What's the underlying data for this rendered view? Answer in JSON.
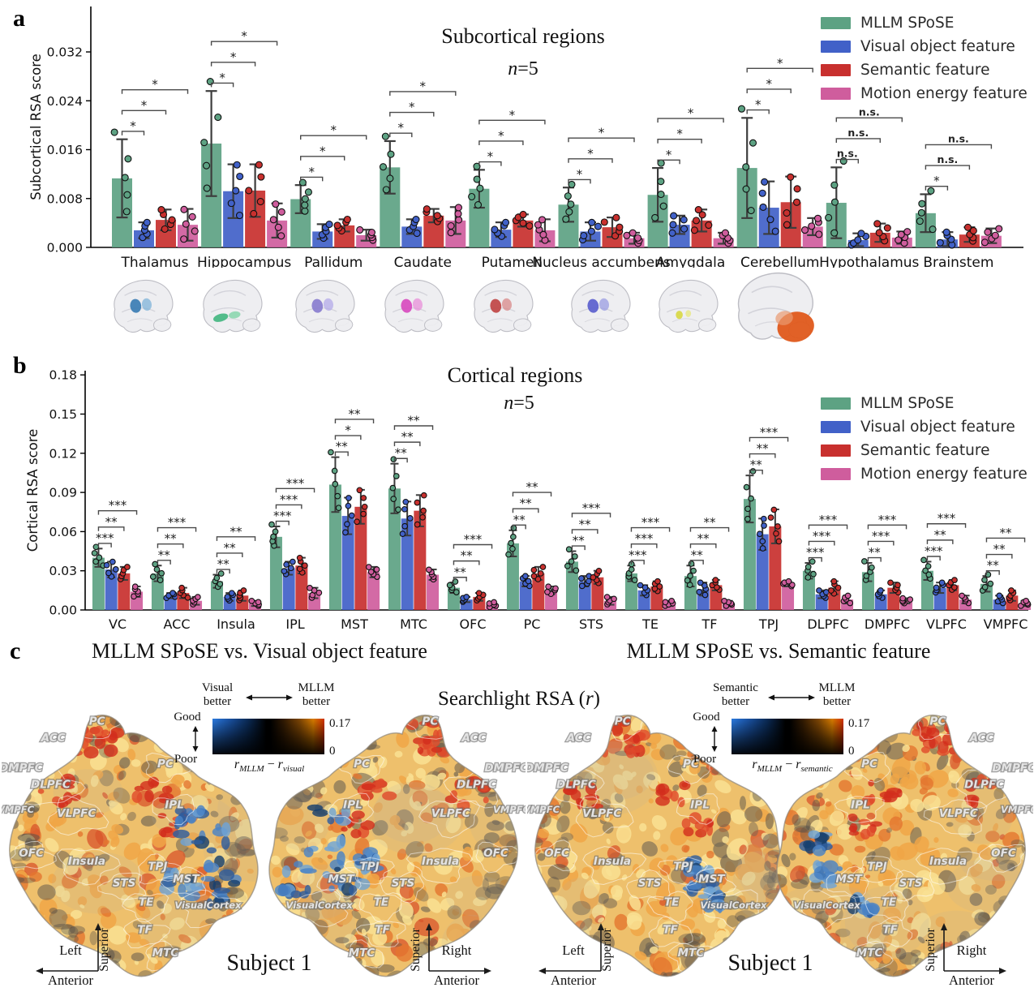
{
  "legend": {
    "items": [
      {
        "label": "MLLM SPoSE",
        "color": "#5da283"
      },
      {
        "label": "Visual object feature",
        "color": "#4161c8"
      },
      {
        "label": "Semantic feature",
        "color": "#c8302e"
      },
      {
        "label": "Motion energy feature",
        "color": "#cf5d9d"
      }
    ]
  },
  "chart_data": [
    {
      "panel": "a",
      "type": "bar",
      "title": "Subcortical regions",
      "subtitle_var": "n",
      "subtitle_rest": "=5",
      "ylabel": "Subcortical RSA score",
      "ylim": [
        0,
        0.0345
      ],
      "yticks": [
        {
          "v": 0.0,
          "label": "0.000"
        },
        {
          "v": 0.008,
          "label": "0.008"
        },
        {
          "v": 0.016,
          "label": "0.016"
        },
        {
          "v": 0.024,
          "label": "0.024"
        },
        {
          "v": 0.032,
          "label": "0.032"
        }
      ],
      "categories": [
        "Thalamus",
        "Hippocampus",
        "Pallidum",
        "Caudate",
        "Putamen",
        "Nucleus accumbens",
        "Amygdala",
        "Cerebellum",
        "Hypothalamus",
        "Brainstem"
      ],
      "series": [
        {
          "name": "MLLM SPoSE",
          "color": "#5da283",
          "values": [
            0.0113,
            0.017,
            0.0079,
            0.0131,
            0.0096,
            0.007,
            0.0086,
            0.013,
            0.0073,
            0.0056
          ],
          "errors": [
            0.0064,
            0.0086,
            0.0023,
            0.0043,
            0.0031,
            0.0028,
            0.0044,
            0.0082,
            0.0058,
            0.0031
          ]
        },
        {
          "name": "Visual object feature",
          "color": "#4161c8",
          "values": [
            0.0028,
            0.0092,
            0.0026,
            0.0034,
            0.0029,
            0.0026,
            0.0037,
            0.0065,
            0.0012,
            0.0013
          ],
          "errors": [
            0.0013,
            0.0044,
            0.0012,
            0.0012,
            0.0012,
            0.0015,
            0.0015,
            0.0043,
            0.0011,
            0.0012
          ]
        },
        {
          "name": "Semantic feature",
          "color": "#c8302e",
          "values": [
            0.0045,
            0.0093,
            0.0036,
            0.0052,
            0.0044,
            0.0033,
            0.0044,
            0.0074,
            0.0024,
            0.0021
          ],
          "errors": [
            0.0017,
            0.0043,
            0.001,
            0.0011,
            0.001,
            0.0016,
            0.0018,
            0.0042,
            0.0015,
            0.0012
          ]
        },
        {
          "name": "Motion energy feature",
          "color": "#cf5d9d",
          "values": [
            0.0037,
            0.0044,
            0.002,
            0.0044,
            0.0028,
            0.0015,
            0.0015,
            0.0034,
            0.0016,
            0.0019
          ],
          "errors": [
            0.0026,
            0.0028,
            0.0009,
            0.0022,
            0.0018,
            0.0009,
            0.0009,
            0.0014,
            0.001,
            0.0012
          ]
        }
      ],
      "significance": [
        [
          "*",
          "*",
          "*"
        ],
        [
          "*",
          "*",
          "*"
        ],
        [
          "*",
          "*",
          "*"
        ],
        [
          "*",
          "*",
          "*"
        ],
        [
          "*",
          "*",
          "*"
        ],
        [
          "*",
          "*",
          "*"
        ],
        [
          "*",
          "*",
          "*"
        ],
        [
          "*",
          "*",
          "*"
        ],
        [
          "n.s.",
          "n.s.",
          "n.s."
        ],
        [
          "*",
          "n.s.",
          "n.s."
        ]
      ],
      "brain_insets": [
        {
          "region": "Thalamus",
          "color": "#3f7fb5",
          "color2": "#7fb3d8",
          "shape": "central"
        },
        {
          "region": "Hippocampus",
          "color": "#49b884",
          "color2": "#7fd3a8",
          "shape": "temporal"
        },
        {
          "region": "Pallidum",
          "color": "#8b80d0",
          "color2": "#b3a9e8",
          "shape": "central"
        },
        {
          "region": "Caudate",
          "color": "#d84fc0",
          "color2": "#e88fd8",
          "shape": "central"
        },
        {
          "region": "Putamen",
          "color": "#c14a4a",
          "color2": "#d88888",
          "shape": "central"
        },
        {
          "region": "Nucleus accumbens",
          "color": "#5f63cf",
          "color2": "#9a9ce2",
          "shape": "central"
        },
        {
          "region": "Amygdala",
          "color": "#d8d84a",
          "color2": "#e8e88a",
          "shape": "amygdala"
        },
        {
          "region": "Cerebellum",
          "color": "#e05c20",
          "color2": "#ea9a70",
          "shape": "cerebellum"
        }
      ]
    },
    {
      "panel": "b",
      "type": "bar",
      "title": "Cortical regions",
      "subtitle_var": "n",
      "subtitle_rest": "=5",
      "ylabel": "Cortical RSA score",
      "ylim": [
        0,
        0.185
      ],
      "yticks": [
        {
          "v": 0.0,
          "label": "0.00"
        },
        {
          "v": 0.03,
          "label": "0.03"
        },
        {
          "v": 0.06,
          "label": "0.06"
        },
        {
          "v": 0.09,
          "label": "0.09"
        },
        {
          "v": 0.12,
          "label": "0.12"
        },
        {
          "v": 0.15,
          "label": "0.15"
        },
        {
          "v": 0.18,
          "label": "0.18"
        }
      ],
      "categories": [
        "VC",
        "ACC",
        "Insula",
        "IPL",
        "MST",
        "MTC",
        "OFC",
        "PC",
        "STS",
        "TE",
        "TF",
        "TPJ",
        "DLPFC",
        "DMPFC",
        "VLPFC",
        "VMPFC"
      ],
      "series": [
        {
          "name": "MLLM SPoSE",
          "color": "#5da283",
          "values": [
            0.04,
            0.028,
            0.022,
            0.056,
            0.096,
            0.093,
            0.017,
            0.051,
            0.037,
            0.028,
            0.026,
            0.085,
            0.03,
            0.029,
            0.03,
            0.02
          ],
          "errors": [
            0.007,
            0.006,
            0.005,
            0.008,
            0.021,
            0.019,
            0.004,
            0.01,
            0.008,
            0.006,
            0.008,
            0.018,
            0.006,
            0.007,
            0.007,
            0.006
          ]
        },
        {
          "name": "Visual object feature",
          "color": "#4161c8",
          "values": [
            0.031,
            0.011,
            0.01,
            0.032,
            0.072,
            0.07,
            0.008,
            0.022,
            0.022,
            0.015,
            0.016,
            0.058,
            0.012,
            0.012,
            0.017,
            0.008
          ],
          "errors": [
            0.006,
            0.002,
            0.003,
            0.005,
            0.014,
            0.013,
            0.002,
            0.004,
            0.004,
            0.004,
            0.005,
            0.012,
            0.003,
            0.003,
            0.004,
            0.003
          ]
        },
        {
          "name": "Semantic feature",
          "color": "#c8302e",
          "values": [
            0.028,
            0.013,
            0.011,
            0.034,
            0.079,
            0.076,
            0.01,
            0.028,
            0.025,
            0.018,
            0.019,
            0.064,
            0.017,
            0.017,
            0.019,
            0.011
          ],
          "errors": [
            0.005,
            0.004,
            0.004,
            0.006,
            0.013,
            0.012,
            0.003,
            0.005,
            0.005,
            0.004,
            0.004,
            0.013,
            0.005,
            0.004,
            0.004,
            0.004
          ]
        },
        {
          "name": "Motion energy feature",
          "color": "#cf5d9d",
          "values": [
            0.014,
            0.007,
            0.005,
            0.013,
            0.029,
            0.027,
            0.004,
            0.015,
            0.007,
            0.005,
            0.005,
            0.02,
            0.008,
            0.007,
            0.008,
            0.005
          ],
          "errors": [
            0.004,
            0.003,
            0.002,
            0.004,
            0.004,
            0.004,
            0.002,
            0.003,
            0.003,
            0.002,
            0.002,
            0.002,
            0.003,
            0.002,
            0.003,
            0.002
          ]
        }
      ],
      "significance": [
        [
          "***",
          "**",
          "***"
        ],
        [
          "**",
          "**",
          "***"
        ],
        [
          "**",
          "**",
          "**"
        ],
        [
          "***",
          "***",
          "***"
        ],
        [
          "**",
          "*",
          "**"
        ],
        [
          "**",
          "**",
          "**"
        ],
        [
          "**",
          "**",
          "***"
        ],
        [
          "**",
          "**",
          "**"
        ],
        [
          "**",
          "**",
          "***"
        ],
        [
          "***",
          "***",
          "***"
        ],
        [
          "**",
          "**",
          "**"
        ],
        [
          "**",
          "**",
          "***"
        ],
        [
          "***",
          "***",
          "***"
        ],
        [
          "**",
          "***",
          "***"
        ],
        [
          "***",
          "**",
          "***"
        ],
        [
          "**",
          "**",
          "**"
        ]
      ]
    },
    {
      "panel": "c",
      "type": "heatmap",
      "center_title_pre": "Searchlight RSA (",
      "center_title_var": "r",
      "center_title_post": ")",
      "comparisons": [
        {
          "title": "MLLM SPoSE vs. Visual object feature",
          "subject": "Subject 1",
          "colorbar": {
            "left_word": "Visual",
            "left_word2": "better",
            "right_word": "MLLM",
            "right_word2": "better",
            "good": "Good",
            "poor": "Poor",
            "max": "0.17",
            "min": "0",
            "formula": {
              "lhs": "r",
              "lsub": "MLLM",
              "op": "−",
              "rhs": "r",
              "rsub": "visual"
            }
          }
        },
        {
          "title": "MLLM SPoSE vs. Semantic feature",
          "subject": "Subject 1",
          "colorbar": {
            "left_word": "Semantic",
            "left_word2": "better",
            "right_word": "MLLM",
            "right_word2": "better",
            "good": "Good",
            "poor": "Poor",
            "max": "0.17",
            "min": "0",
            "formula": {
              "lhs": "r",
              "lsub": "MLLM",
              "op": "−",
              "rhs": "r",
              "rsub": "semantic"
            }
          }
        }
      ],
      "axes": {
        "superior": "Superior",
        "anterior": "Anterior",
        "left": "Left",
        "right": "Right"
      },
      "region_labels": [
        {
          "t": "PC",
          "fx": 0.37,
          "fy": 0.055
        },
        {
          "t": "ACC",
          "fx": 0.2,
          "fy": 0.115
        },
        {
          "t": "DMPFC",
          "fx": 0.075,
          "fy": 0.225
        },
        {
          "t": "DLPFC",
          "fx": 0.19,
          "fy": 0.285
        },
        {
          "t": "PC",
          "fx": 0.635,
          "fy": 0.21
        },
        {
          "t": "VMPFC",
          "fx": 0.055,
          "fy": 0.375,
          "fs": 11.5
        },
        {
          "t": "VLPFC",
          "fx": 0.29,
          "fy": 0.39
        },
        {
          "t": "IPL",
          "fx": 0.67,
          "fy": 0.36
        },
        {
          "t": "OFC",
          "fx": 0.115,
          "fy": 0.535
        },
        {
          "t": "Insula",
          "fx": 0.33,
          "fy": 0.565
        },
        {
          "t": "TPJ",
          "fx": 0.605,
          "fy": 0.585
        },
        {
          "t": "MST",
          "fx": 0.715,
          "fy": 0.63
        },
        {
          "t": "STS",
          "fx": 0.475,
          "fy": 0.645
        },
        {
          "t": "TE",
          "fx": 0.56,
          "fy": 0.715
        },
        {
          "t": "VisualCortex",
          "fx": 0.8,
          "fy": 0.725,
          "fs": 11.5
        },
        {
          "t": "TF",
          "fx": 0.555,
          "fy": 0.815
        },
        {
          "t": "MTC",
          "fx": 0.635,
          "fy": 0.9
        }
      ]
    }
  ]
}
